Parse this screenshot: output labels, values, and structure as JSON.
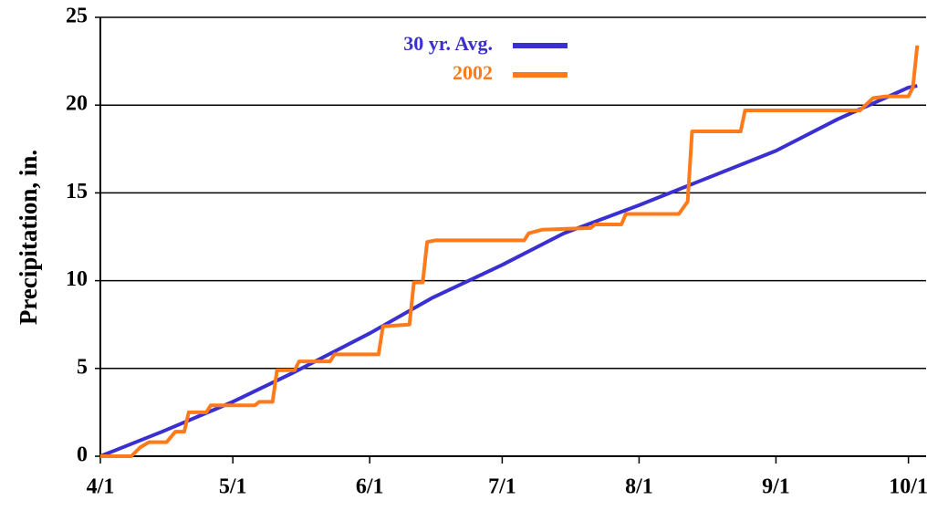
{
  "chart_data": {
    "type": "line",
    "y_label": "Precipitation, in.",
    "xlim": [
      "4/1",
      "10/5"
    ],
    "xticks": [
      "4/1",
      "5/1",
      "6/1",
      "7/1",
      "8/1",
      "9/1",
      "10/1"
    ],
    "ylim": [
      0,
      25
    ],
    "yticks": [
      0,
      5,
      10,
      15,
      20,
      25
    ],
    "grid": true,
    "series": [
      {
        "name": "30 yr. Avg.",
        "color": "#3a2fd0",
        "x": [
          "4/1",
          "4/15",
          "5/1",
          "5/15",
          "6/1",
          "6/15",
          "7/1",
          "7/15",
          "8/1",
          "8/15",
          "9/1",
          "9/15",
          "10/1",
          "10/3"
        ],
        "values": [
          0,
          1.4,
          3.1,
          4.8,
          7.0,
          9.0,
          10.9,
          12.7,
          14.3,
          15.7,
          17.4,
          19.2,
          21.0,
          21.1
        ]
      },
      {
        "name": "2002",
        "color": "#ff7a1a",
        "x": [
          "4/1",
          "4/8",
          "4/10",
          "4/12",
          "4/16",
          "4/18",
          "4/20",
          "4/21",
          "4/25",
          "4/26",
          "5/6",
          "5/7",
          "5/10",
          "5/11",
          "5/15",
          "5/16",
          "5/23",
          "5/24",
          "6/3",
          "6/4",
          "6/10",
          "6/11",
          "6/13",
          "6/14",
          "6/16",
          "7/6",
          "7/7",
          "7/10",
          "7/21",
          "7/22",
          "7/28",
          "7/29",
          "8/10",
          "8/12",
          "8/13",
          "8/24",
          "8/25",
          "9/20",
          "9/23",
          "9/26",
          "10/1",
          "10/2",
          "10/3"
        ],
        "values": [
          0,
          0,
          0.5,
          0.8,
          0.8,
          1.4,
          1.4,
          2.5,
          2.5,
          2.9,
          2.9,
          3.1,
          3.1,
          4.9,
          4.9,
          5.4,
          5.4,
          5.8,
          5.8,
          7.4,
          7.5,
          9.9,
          9.9,
          12.2,
          12.3,
          12.3,
          12.7,
          12.9,
          13.0,
          13.2,
          13.2,
          13.8,
          13.8,
          14.5,
          18.5,
          18.5,
          19.7,
          19.7,
          20.4,
          20.5,
          20.5,
          21.0,
          23.4
        ]
      }
    ]
  }
}
